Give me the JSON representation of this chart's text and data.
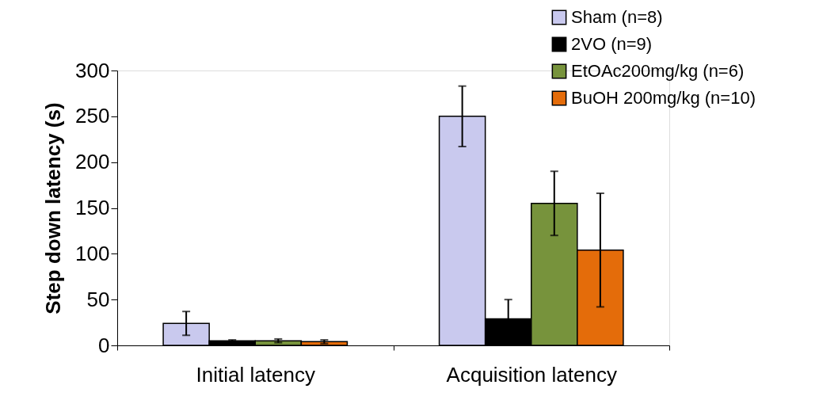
{
  "chart_data": {
    "type": "bar",
    "ylabel": "Step down latency (s)",
    "categories": [
      "Initial latency",
      "Acquisition latency"
    ],
    "series": [
      {
        "name": "Sham (n=8)",
        "color": "#c9c9ee",
        "values": [
          24,
          250
        ],
        "errors": [
          13,
          33
        ]
      },
      {
        "name": "2VO (n=9)",
        "color": "#000000",
        "values": [
          5,
          29
        ],
        "errors": [
          1,
          21
        ]
      },
      {
        "name": "EtOAc200mg/kg (n=6)",
        "color": "#77933c",
        "values": [
          5,
          155
        ],
        "errors": [
          2,
          35
        ]
      },
      {
        "name": "BuOH 200mg/kg (n=10)",
        "color": "#e46c0a",
        "values": [
          4,
          104
        ],
        "errors": [
          2,
          62
        ]
      }
    ],
    "ylim": [
      0,
      300
    ],
    "yticks": [
      0,
      50,
      100,
      150,
      200,
      250,
      300
    ],
    "grid": false,
    "legend": "top right"
  }
}
